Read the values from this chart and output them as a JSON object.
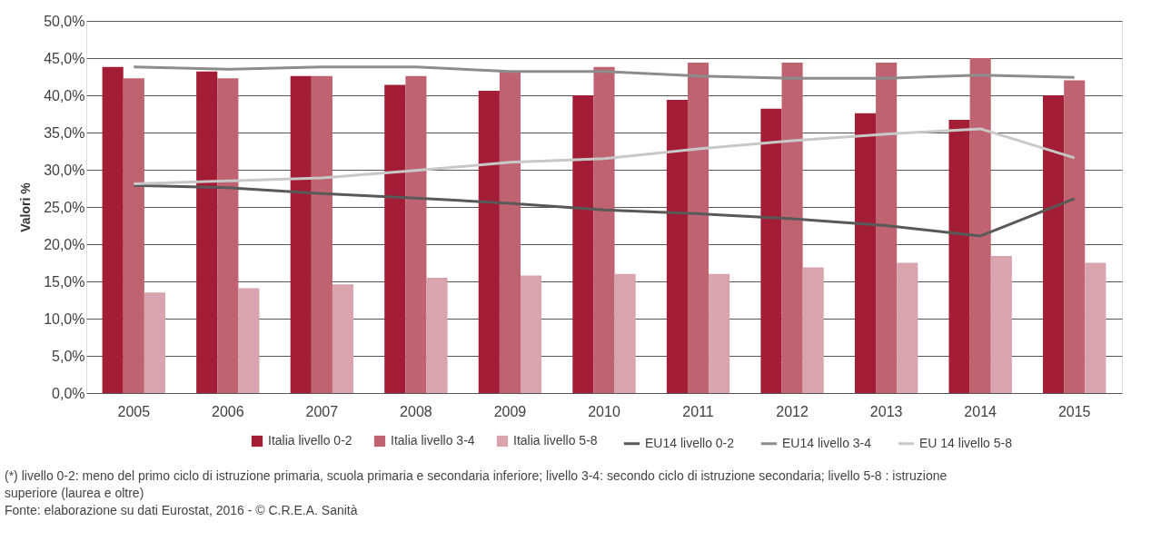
{
  "chart_data": {
    "type": "bar",
    "ylabel": "Valori %",
    "categories": [
      "2005",
      "2006",
      "2007",
      "2008",
      "2009",
      "2010",
      "2011",
      "2012",
      "2013",
      "2014",
      "2015"
    ],
    "series": [
      {
        "name": "Italia livello 0-2",
        "color": "#a31d36",
        "values": [
          43.8,
          43.2,
          42.6,
          41.4,
          40.6,
          40.0,
          39.4,
          38.2,
          37.6,
          36.7,
          40.0
        ]
      },
      {
        "name": "Italia livello 3-4",
        "color": "#bf6370",
        "values": [
          42.3,
          42.3,
          42.6,
          42.6,
          43.2,
          43.8,
          44.4,
          44.4,
          44.4,
          45.0,
          42.0
        ]
      },
      {
        "name": "Italia livello 5-8",
        "color": "#d9a4ad",
        "values": [
          13.5,
          14.1,
          14.6,
          15.5,
          15.8,
          16.0,
          16.0,
          16.9,
          17.5,
          18.4,
          17.5
        ]
      },
      {
        "name": "EU14 livello 0-2",
        "type": "line",
        "color": "#595959",
        "values": [
          27.9,
          27.6,
          26.8,
          26.2,
          25.5,
          24.6,
          24.1,
          23.4,
          22.5,
          21.1,
          26.1
        ]
      },
      {
        "name": "EU14 livello 3-4",
        "type": "line",
        "color": "#8c8c8c",
        "values": [
          43.8,
          43.5,
          43.8,
          43.8,
          43.2,
          43.2,
          42.6,
          42.3,
          42.3,
          42.7,
          42.4
        ]
      },
      {
        "name": "EU 14 livello 5-8",
        "type": "line",
        "color": "#c8c8c8",
        "values": [
          28.1,
          28.5,
          28.9,
          29.9,
          31.0,
          31.5,
          32.8,
          33.9,
          34.8,
          35.5,
          31.6
        ]
      }
    ],
    "ylim": [
      0,
      50
    ],
    "yticks": [
      {
        "value": 0,
        "label": "0,0%"
      },
      {
        "value": 5,
        "label": "5,0%"
      },
      {
        "value": 10,
        "label": "10,0%"
      },
      {
        "value": 15,
        "label": "15,0%"
      },
      {
        "value": 20,
        "label": "20,0%"
      },
      {
        "value": 25,
        "label": "25,0%"
      },
      {
        "value": 30,
        "label": "30,0%"
      },
      {
        "value": 35,
        "label": "35,0%"
      },
      {
        "value": 40,
        "label": "40,0%"
      },
      {
        "value": 45,
        "label": "45,0%"
      },
      {
        "value": 50,
        "label": "50,0%"
      }
    ],
    "grid": "y",
    "legend": "bottom",
    "marker": "none",
    "line_style": "solid",
    "annotations": [
      "(*) livello 0-2: meno del primo ciclo di  istruzione primaria, scuola primaria e secondaria inferiore; livello 3-4: secondo ciclo di istruzione secondaria; livello 5-8 : istruzione superiore (laurea e oltre)",
      "Fonte: elaborazione su dati Eurostat, 2016 - © C.R.E.A. Sanità"
    ]
  }
}
